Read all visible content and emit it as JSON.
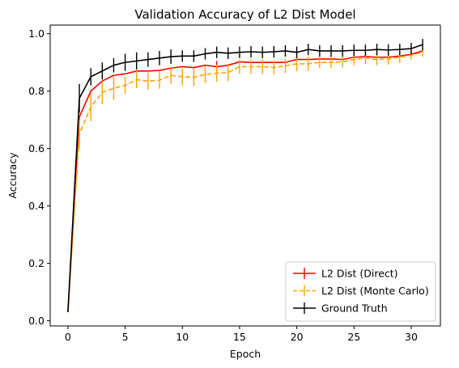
{
  "chart_data": {
    "type": "line",
    "title": "Validation Accuracy of L2 Dist Model",
    "xlabel": "Epoch",
    "ylabel": "Accuracy",
    "xlim": [
      -1.55,
      32.55
    ],
    "ylim": [
      -0.018,
      1.03
    ],
    "xticks": [
      0,
      5,
      10,
      15,
      20,
      25,
      30
    ],
    "yticks": [
      0.0,
      0.2,
      0.4,
      0.6,
      0.8,
      1.0
    ],
    "ytick_labels": [
      "0.0",
      "0.2",
      "0.4",
      "0.6",
      "0.8",
      "1.0"
    ],
    "grid": false,
    "legend_position": "lower-right",
    "x": [
      0,
      1,
      2,
      3,
      4,
      5,
      6,
      7,
      8,
      9,
      10,
      11,
      12,
      13,
      14,
      15,
      16,
      17,
      18,
      19,
      20,
      21,
      22,
      23,
      24,
      25,
      26,
      27,
      28,
      29,
      30,
      31
    ],
    "series": [
      {
        "name": "L2 Dist (Direct)",
        "color": "#ff0000",
        "linestyle": "solid",
        "values": [
          0.03,
          0.71,
          0.8,
          0.835,
          0.855,
          0.86,
          0.87,
          0.87,
          0.872,
          0.88,
          0.885,
          0.882,
          0.89,
          0.885,
          0.89,
          0.902,
          0.9,
          0.9,
          0.9,
          0.9,
          0.91,
          0.91,
          0.912,
          0.912,
          0.91,
          0.918,
          0.92,
          0.918,
          0.918,
          0.922,
          0.928,
          0.94
        ],
        "errors": [
          0,
          0,
          0,
          0,
          0,
          0,
          0,
          0,
          0,
          0,
          0,
          0,
          0,
          0.02,
          0,
          0,
          0,
          0,
          0,
          0,
          0,
          0,
          0,
          0,
          0,
          0,
          0,
          0,
          0,
          0,
          0,
          0
        ]
      },
      {
        "name": "L2 Dist (Monte Carlo)",
        "color": "#ffa500",
        "linestyle": "dashed",
        "values": [
          0.03,
          0.65,
          0.745,
          0.795,
          0.81,
          0.82,
          0.84,
          0.835,
          0.838,
          0.855,
          0.85,
          0.848,
          0.858,
          0.862,
          0.865,
          0.885,
          0.885,
          0.885,
          0.882,
          0.888,
          0.895,
          0.895,
          0.9,
          0.9,
          0.902,
          0.91,
          0.915,
          0.91,
          0.912,
          0.918,
          0.925,
          0.935
        ],
        "errors": [
          0,
          0.05,
          0.05,
          0.04,
          0.04,
          0.03,
          0.03,
          0.03,
          0.03,
          0.03,
          0.03,
          0.03,
          0.03,
          0.03,
          0.03,
          0.025,
          0.025,
          0.025,
          0.025,
          0.025,
          0.025,
          0.025,
          0.02,
          0.02,
          0.02,
          0.02,
          0.02,
          0.02,
          0.02,
          0.02,
          0.015,
          0.015
        ]
      },
      {
        "name": "Ground Truth",
        "color": "#000000",
        "linestyle": "solid",
        "values": [
          0.03,
          0.775,
          0.85,
          0.87,
          0.89,
          0.9,
          0.905,
          0.91,
          0.915,
          0.92,
          0.922,
          0.922,
          0.93,
          0.935,
          0.932,
          0.935,
          0.937,
          0.935,
          0.937,
          0.94,
          0.935,
          0.945,
          0.94,
          0.94,
          0.94,
          0.942,
          0.942,
          0.945,
          0.943,
          0.945,
          0.948,
          0.962
        ],
        "errors": [
          0,
          0.05,
          0.03,
          0.03,
          0.025,
          0.03,
          0.03,
          0.025,
          0.025,
          0.025,
          0.02,
          0.02,
          0.02,
          0.02,
          0.02,
          0.02,
          0.02,
          0.02,
          0.02,
          0.02,
          0.02,
          0.02,
          0.02,
          0.02,
          0.02,
          0.02,
          0.02,
          0.02,
          0.02,
          0.02,
          0.02,
          0.02
        ]
      }
    ]
  }
}
